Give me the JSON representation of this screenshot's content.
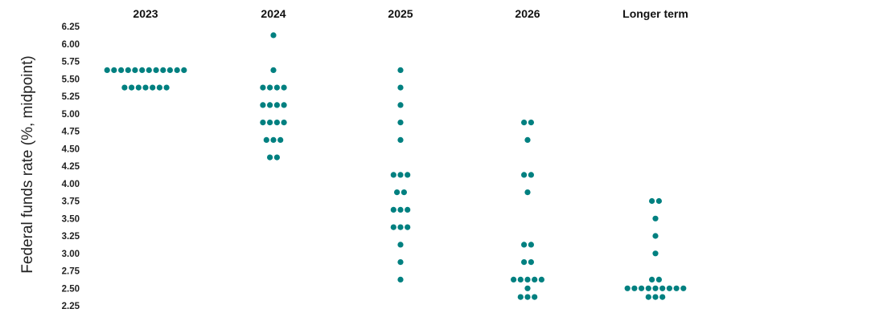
{
  "chart_data": {
    "type": "scatter",
    "ylabel": "Federal funds rate (%, midpoint)",
    "xlabel": "",
    "title": "",
    "ylim": [
      2.25,
      6.25
    ],
    "yticks": [
      "6.25",
      "6.00",
      "5.75",
      "5.50",
      "5.25",
      "5.00",
      "4.75",
      "4.50",
      "4.25",
      "4.00",
      "3.75",
      "3.50",
      "3.25",
      "3.00",
      "2.75",
      "2.50",
      "2.25"
    ],
    "grid": false,
    "dot_color": "#008080",
    "categories": [
      "2023",
      "2024",
      "2025",
      "2026",
      "Longer term"
    ],
    "series": [
      {
        "category": "2023",
        "points": [
          {
            "y": 5.625,
            "count": 12
          },
          {
            "y": 5.375,
            "count": 7
          }
        ]
      },
      {
        "category": "2024",
        "points": [
          {
            "y": 6.125,
            "count": 1
          },
          {
            "y": 5.625,
            "count": 1
          },
          {
            "y": 5.375,
            "count": 4
          },
          {
            "y": 5.125,
            "count": 4
          },
          {
            "y": 4.875,
            "count": 4
          },
          {
            "y": 4.625,
            "count": 3
          },
          {
            "y": 4.375,
            "count": 2
          }
        ]
      },
      {
        "category": "2025",
        "points": [
          {
            "y": 5.625,
            "count": 1
          },
          {
            "y": 5.375,
            "count": 1
          },
          {
            "y": 5.125,
            "count": 1
          },
          {
            "y": 4.875,
            "count": 1
          },
          {
            "y": 4.625,
            "count": 1
          },
          {
            "y": 4.125,
            "count": 3
          },
          {
            "y": 3.875,
            "count": 2
          },
          {
            "y": 3.625,
            "count": 3
          },
          {
            "y": 3.375,
            "count": 3
          },
          {
            "y": 3.125,
            "count": 1
          },
          {
            "y": 2.875,
            "count": 1
          },
          {
            "y": 2.625,
            "count": 1
          }
        ]
      },
      {
        "category": "2026",
        "points": [
          {
            "y": 4.875,
            "count": 2
          },
          {
            "y": 4.625,
            "count": 1
          },
          {
            "y": 4.125,
            "count": 2
          },
          {
            "y": 3.875,
            "count": 1
          },
          {
            "y": 3.125,
            "count": 2
          },
          {
            "y": 2.875,
            "count": 2
          },
          {
            "y": 2.625,
            "count": 5
          },
          {
            "y": 2.5,
            "count": 1
          },
          {
            "y": 2.375,
            "count": 3
          }
        ]
      },
      {
        "category": "Longer term",
        "points": [
          {
            "y": 3.75,
            "count": 2
          },
          {
            "y": 3.5,
            "count": 1
          },
          {
            "y": 3.25,
            "count": 1
          },
          {
            "y": 3.0,
            "count": 1
          },
          {
            "y": 2.625,
            "count": 2
          },
          {
            "y": 2.5,
            "count": 9
          },
          {
            "y": 2.375,
            "count": 3
          }
        ]
      }
    ]
  }
}
